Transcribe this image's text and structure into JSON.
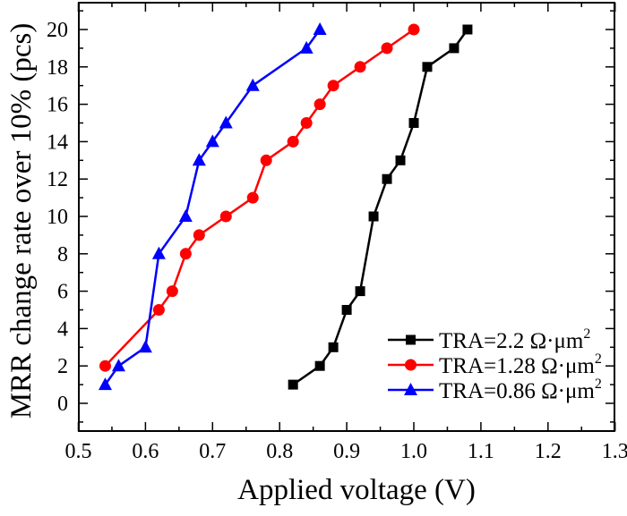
{
  "chart_data": {
    "type": "line",
    "title": "",
    "xlabel": "Applied voltage (V)",
    "ylabel": "MRR change rate over 10% (pcs)",
    "xlim": [
      0.5,
      1.3
    ],
    "ylim": [
      -1.5,
      21.5
    ],
    "xticks": [
      0.5,
      0.6,
      0.7,
      0.8,
      0.9,
      1.0,
      1.1,
      1.2,
      1.3
    ],
    "xtick_labels": [
      "0.5",
      "0.6",
      "0.7",
      "0.8",
      "0.9",
      "1.0",
      "1.1",
      "1.2",
      "1.3"
    ],
    "yticks": [
      0,
      2,
      4,
      6,
      8,
      10,
      12,
      14,
      16,
      18,
      20
    ],
    "ytick_labels": [
      "0",
      "2",
      "4",
      "6",
      "8",
      "10",
      "12",
      "14",
      "16",
      "18",
      "20"
    ],
    "grid": false,
    "legend_position": "bottom-right",
    "series": [
      {
        "name": "TRA=2.2 Ω·μm²",
        "label_main": "TRA=2.2 Ω·μm",
        "label_sup": "2",
        "color": "#000000",
        "marker": "square",
        "x": [
          0.82,
          0.86,
          0.88,
          0.9,
          0.92,
          0.94,
          0.96,
          0.98,
          1.0,
          1.02,
          1.06,
          1.08
        ],
        "y": [
          1,
          2,
          3,
          5,
          6,
          10,
          12,
          13,
          15,
          18,
          19,
          20
        ]
      },
      {
        "name": "TRA=1.28 Ω·μm²",
        "label_main": "TRA=1.28 Ω·μm",
        "label_sup": "2",
        "color": "#ff0000",
        "marker": "circle",
        "x": [
          0.54,
          0.62,
          0.64,
          0.66,
          0.68,
          0.72,
          0.76,
          0.78,
          0.82,
          0.84,
          0.86,
          0.88,
          0.92,
          0.96,
          1.0
        ],
        "y": [
          2,
          5,
          6,
          8,
          9,
          10,
          11,
          13,
          14,
          15,
          16,
          17,
          18,
          19,
          20
        ]
      },
      {
        "name": "TRA=0.86 Ω·μm²",
        "label_main": "TRA=0.86 Ω·μm",
        "label_sup": "2",
        "color": "#0000ff",
        "marker": "triangle",
        "x": [
          0.54,
          0.56,
          0.6,
          0.62,
          0.66,
          0.68,
          0.7,
          0.72,
          0.76,
          0.84,
          0.86
        ],
        "y": [
          1,
          2,
          3,
          8,
          10,
          13,
          14,
          15,
          17,
          19,
          20
        ]
      }
    ]
  }
}
